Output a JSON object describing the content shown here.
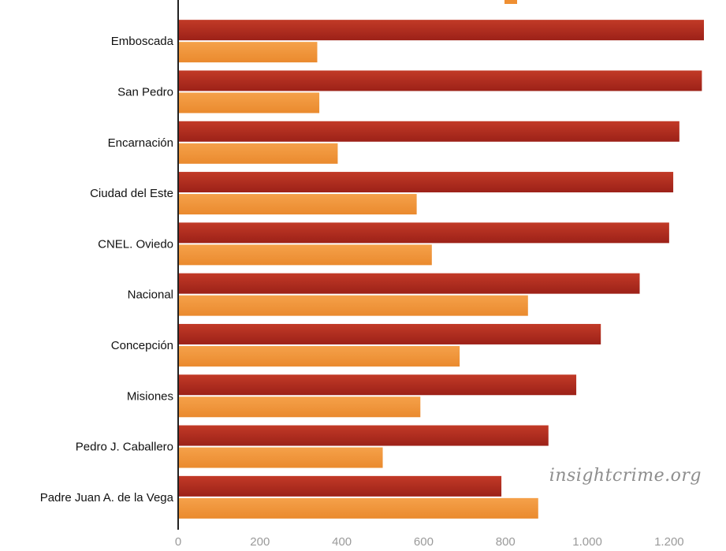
{
  "watermark": "insightcrime.org",
  "colors": {
    "series_dark": "#a8251c",
    "series_dark_light": "#c8422c",
    "series_light": "#ef8f32",
    "series_light_light": "#f7ac5a",
    "axis": "#222222",
    "tick_text": "#9a9a9a",
    "label_text": "#111111"
  },
  "chart_data": {
    "type": "bar",
    "orientation": "horizontal",
    "categories": [
      "Emboscada",
      "San Pedro",
      "Encarnación",
      "Ciudad del Este",
      "CNEL. Oviedo",
      "Nacional",
      "Concepción",
      "Misiones",
      "Pedro J. Caballero",
      "Padre Juan A. de la Vega"
    ],
    "series": [
      {
        "color": "#a8251c",
        "values": [
          1285,
          1280,
          1225,
          1210,
          1200,
          1128,
          1033,
          973,
          905,
          790
        ]
      },
      {
        "color": "#ef8f32",
        "values": [
          340,
          345,
          390,
          583,
          620,
          855,
          688,
          592,
          500,
          880
        ]
      }
    ],
    "xlim": [
      0,
      1285
    ],
    "xticks": [
      0,
      200,
      400,
      600,
      800,
      1000,
      1200
    ],
    "xtick_labels": [
      "0",
      "200",
      "400",
      "600",
      "800",
      "1.000",
      "1.200"
    ],
    "grid": false,
    "legend": "top-right"
  }
}
